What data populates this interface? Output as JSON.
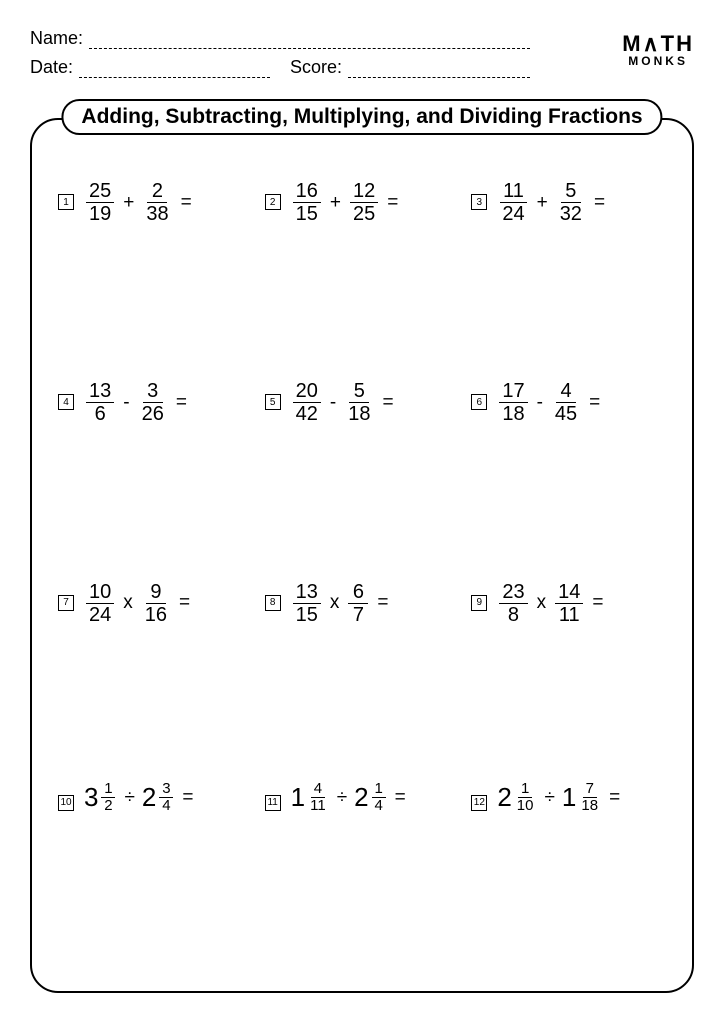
{
  "header": {
    "name_label": "Name:",
    "date_label": "Date:",
    "score_label": "Score:",
    "logo_top": "M∧TH",
    "logo_bottom": "MONKS"
  },
  "title": "Adding, Subtracting, Multiplying, and Dividing Fractions",
  "colors": {
    "text": "#000000",
    "background": "#ffffff",
    "border": "#000000"
  },
  "typography": {
    "title_fontsize": 21,
    "label_fontsize": 18,
    "fraction_fontsize": 20,
    "mixed_whole_fontsize": 26,
    "problem_num_fontsize": 10
  },
  "layout": {
    "columns": 3,
    "rows": 4,
    "frame_radius": 28
  },
  "problems": [
    {
      "n": "1",
      "type": "simple",
      "a": {
        "num": "25",
        "den": "19"
      },
      "op": "+",
      "b": {
        "num": "2",
        "den": "38"
      }
    },
    {
      "n": "2",
      "type": "simple",
      "a": {
        "num": "16",
        "den": "15"
      },
      "op": "+",
      "b": {
        "num": "12",
        "den": "25"
      }
    },
    {
      "n": "3",
      "type": "simple",
      "a": {
        "num": "11",
        "den": "24"
      },
      "op": "+",
      "b": {
        "num": "5",
        "den": "32"
      }
    },
    {
      "n": "4",
      "type": "simple",
      "a": {
        "num": "13",
        "den": "6"
      },
      "op": "-",
      "b": {
        "num": "3",
        "den": "26"
      }
    },
    {
      "n": "5",
      "type": "simple",
      "a": {
        "num": "20",
        "den": "42"
      },
      "op": "-",
      "b": {
        "num": "5",
        "den": "18"
      }
    },
    {
      "n": "6",
      "type": "simple",
      "a": {
        "num": "17",
        "den": "18"
      },
      "op": "-",
      "b": {
        "num": "4",
        "den": "45"
      }
    },
    {
      "n": "7",
      "type": "simple",
      "a": {
        "num": "10",
        "den": "24"
      },
      "op": "x",
      "b": {
        "num": "9",
        "den": "16"
      }
    },
    {
      "n": "8",
      "type": "simple",
      "a": {
        "num": "13",
        "den": "15"
      },
      "op": "x",
      "b": {
        "num": "6",
        "den": "7"
      }
    },
    {
      "n": "9",
      "type": "simple",
      "a": {
        "num": "23",
        "den": "8"
      },
      "op": "x",
      "b": {
        "num": "14",
        "den": "11"
      }
    },
    {
      "n": "10",
      "type": "mixed",
      "a": {
        "whole": "3",
        "num": "1",
        "den": "2"
      },
      "op": "÷",
      "b": {
        "whole": "2",
        "num": "3",
        "den": "4"
      }
    },
    {
      "n": "11",
      "type": "mixed",
      "a": {
        "whole": "1",
        "num": "4",
        "den": "11"
      },
      "op": "÷",
      "b": {
        "whole": "2",
        "num": "1",
        "den": "4"
      }
    },
    {
      "n": "12",
      "type": "mixed",
      "a": {
        "whole": "2",
        "num": "1",
        "den": "10"
      },
      "op": "÷",
      "b": {
        "whole": "1",
        "num": "7",
        "den": "18"
      }
    }
  ]
}
